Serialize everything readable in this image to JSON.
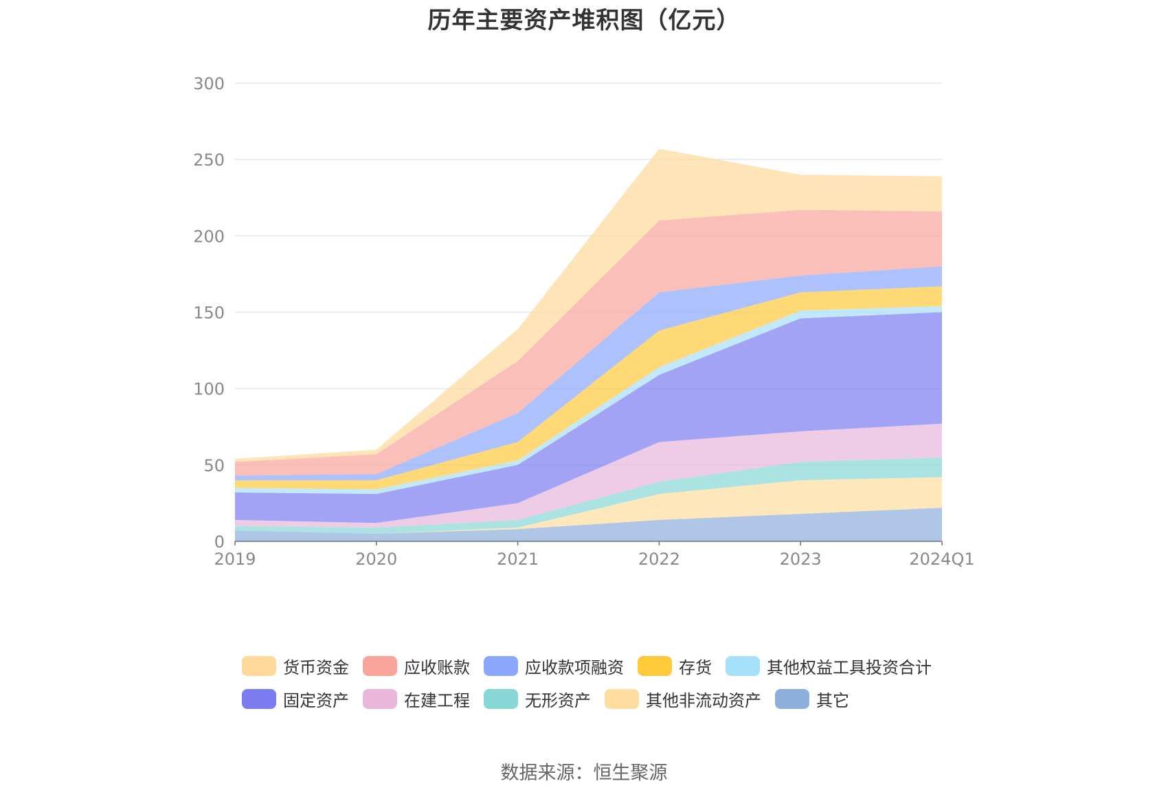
{
  "chart_data": {
    "type": "area",
    "stacked": true,
    "title": "历年主要资产堆积图（亿元）",
    "categories": [
      "2019",
      "2020",
      "2021",
      "2022",
      "2023",
      "2024Q1"
    ],
    "ylim": [
      0,
      300
    ],
    "yticks": [
      "0",
      "50",
      "100",
      "150",
      "200",
      "250",
      "300"
    ],
    "grid": true,
    "legend_position": "bottom",
    "series": [
      {
        "name": "其它",
        "color": "#8eaedc",
        "values": [
          7,
          5,
          8,
          14,
          18,
          22
        ]
      },
      {
        "name": "其他非流动资产",
        "color": "#ffdda0",
        "values": [
          0,
          0,
          1,
          17,
          22,
          20
        ]
      },
      {
        "name": "无形资产",
        "color": "#88d7d7",
        "values": [
          3,
          4,
          5,
          8,
          12,
          13
        ]
      },
      {
        "name": "在建工程",
        "color": "#e8b7db",
        "values": [
          4,
          3,
          11,
          26,
          20,
          22
        ]
      },
      {
        "name": "固定资产",
        "color": "#7b7cf0",
        "values": [
          18,
          19,
          25,
          44,
          74,
          73
        ]
      },
      {
        "name": "其他权益工具投资合计",
        "color": "#a7e0f9",
        "values": [
          3,
          3,
          3,
          5,
          5,
          4
        ]
      },
      {
        "name": "存货",
        "color": "#ffc93c",
        "values": [
          5,
          6,
          12,
          24,
          12,
          13
        ]
      },
      {
        "name": "应收款项融资",
        "color": "#8aa7fb",
        "values": [
          3,
          4,
          19,
          25,
          11,
          13
        ]
      },
      {
        "name": "应收账款",
        "color": "#faa49b",
        "values": [
          9,
          13,
          34,
          47,
          43,
          36
        ]
      },
      {
        "name": "货币资金",
        "color": "#ffd89a",
        "values": [
          2,
          3,
          21,
          47,
          23,
          23
        ]
      }
    ]
  },
  "legend": {
    "rows": [
      [
        {
          "label": "货币资金",
          "color": "#ffd89a"
        },
        {
          "label": "应收账款",
          "color": "#faa49b"
        },
        {
          "label": "应收款项融资",
          "color": "#8aa7fb"
        },
        {
          "label": "存货",
          "color": "#ffc93c"
        },
        {
          "label": "其他权益工具投资合计",
          "color": "#a7e0f9"
        }
      ],
      [
        {
          "label": "固定资产",
          "color": "#7b7cf0"
        },
        {
          "label": "在建工程",
          "color": "#e8b7db"
        },
        {
          "label": "无形资产",
          "color": "#88d7d7"
        },
        {
          "label": "其他非流动资产",
          "color": "#ffdda0"
        },
        {
          "label": "其它",
          "color": "#8eaedc"
        }
      ]
    ]
  },
  "source": "数据来源：恒生聚源"
}
